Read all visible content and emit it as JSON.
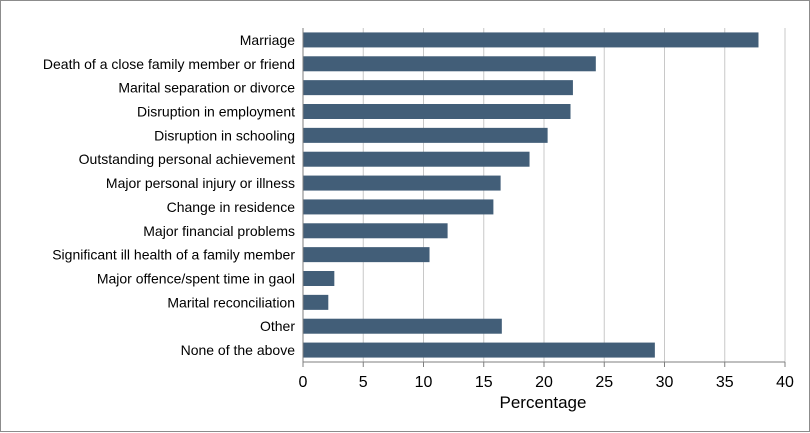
{
  "chart_data": {
    "type": "bar",
    "orientation": "horizontal",
    "categories": [
      "Marriage",
      "Death of a close family member or friend",
      "Marital separation or divorce",
      "Disruption in employment",
      "Disruption in schooling",
      "Outstanding personal achievement",
      "Major personal injury or illness",
      "Change in residence",
      "Major financial problems",
      "Significant ill health of a family member",
      "Major offence/spent time in gaol",
      "Marital reconciliation",
      "Other",
      "None of the above"
    ],
    "values": [
      37.8,
      24.3,
      22.4,
      22.2,
      20.3,
      18.8,
      16.4,
      15.8,
      12.0,
      10.5,
      2.6,
      2.1,
      16.5,
      29.2
    ],
    "title": "",
    "xlabel": "Percentage",
    "ylabel": "",
    "xlim": [
      0,
      40
    ],
    "xticks": [
      "0",
      "5",
      "10",
      "15",
      "20",
      "25",
      "30",
      "35",
      "40"
    ],
    "grid": "vertical",
    "bar_color": "#425e78",
    "grid_color": "#c8c8c8",
    "axis_color": "#7f7f7f"
  }
}
